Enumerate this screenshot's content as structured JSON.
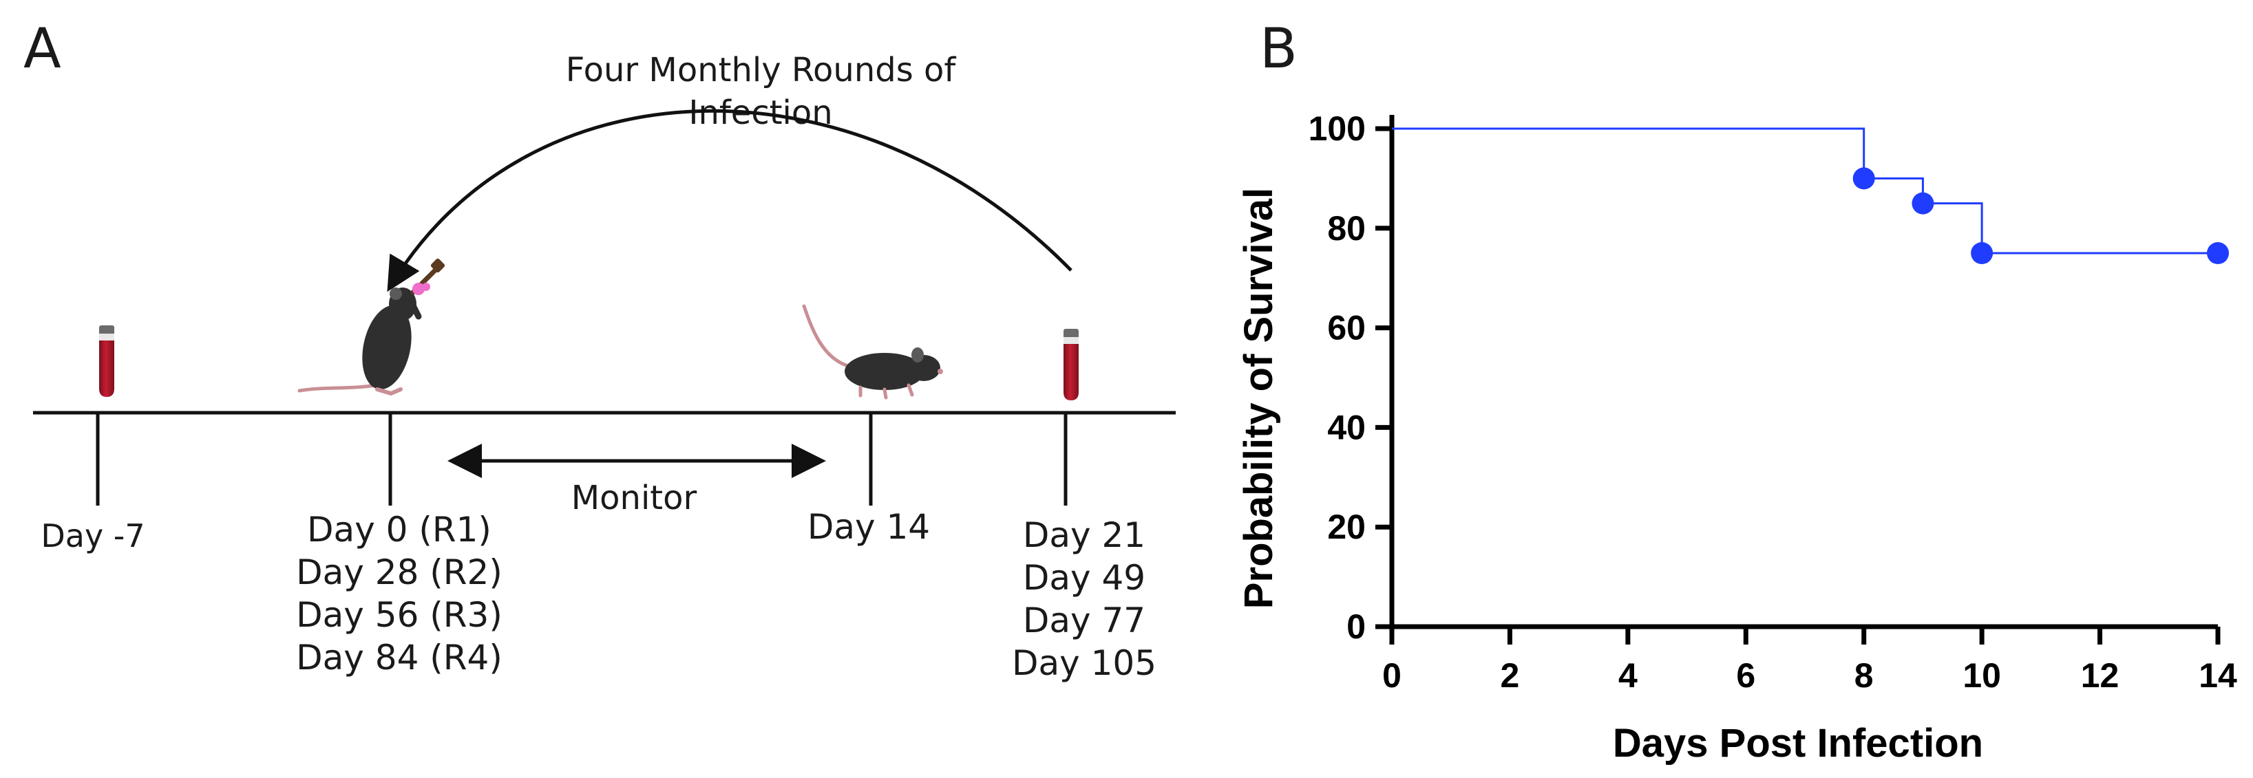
{
  "panel_a": {
    "label": "A",
    "arc_caption": [
      "Four Monthly Rounds of",
      "Infection"
    ],
    "monitor_label": "Monitor",
    "timepoints": [
      {
        "name": "day-minus-7",
        "lines": [
          "Day -7"
        ]
      },
      {
        "name": "infection-rounds",
        "lines": [
          "Day 0 (R1)",
          "Day 28 (R2)",
          "Day 56 (R3)",
          "Day 84 (R4)"
        ]
      },
      {
        "name": "day-14",
        "lines": [
          "Day 14"
        ]
      },
      {
        "name": "bleed-days",
        "lines": [
          "Day 21",
          "Day 49",
          "Day 77",
          "Day 105"
        ]
      }
    ],
    "colors": {
      "blood": "#a11426",
      "mouse": "#2f2f2f",
      "tail": "#c98f95",
      "line": "#111111"
    }
  },
  "panel_b": {
    "label": "B"
  },
  "chart_data": {
    "type": "line",
    "title": "",
    "xlabel": "Days Post Infection",
    "ylabel": "Probability of Survival",
    "xlim": [
      0,
      14
    ],
    "ylim": [
      0,
      100
    ],
    "xticks": [
      0,
      2,
      4,
      6,
      8,
      10,
      12,
      14
    ],
    "yticks": [
      0,
      20,
      40,
      60,
      80,
      100
    ],
    "grid": false,
    "step": true,
    "series": [
      {
        "name": "Survival",
        "color": "#1f3cff",
        "x": [
          0,
          8,
          9,
          10,
          14
        ],
        "y": [
          100,
          90,
          85,
          75,
          75
        ],
        "markers": [
          {
            "x": 8,
            "y": 90
          },
          {
            "x": 9,
            "y": 85
          },
          {
            "x": 10,
            "y": 75
          },
          {
            "x": 14,
            "y": 75
          }
        ]
      }
    ]
  }
}
